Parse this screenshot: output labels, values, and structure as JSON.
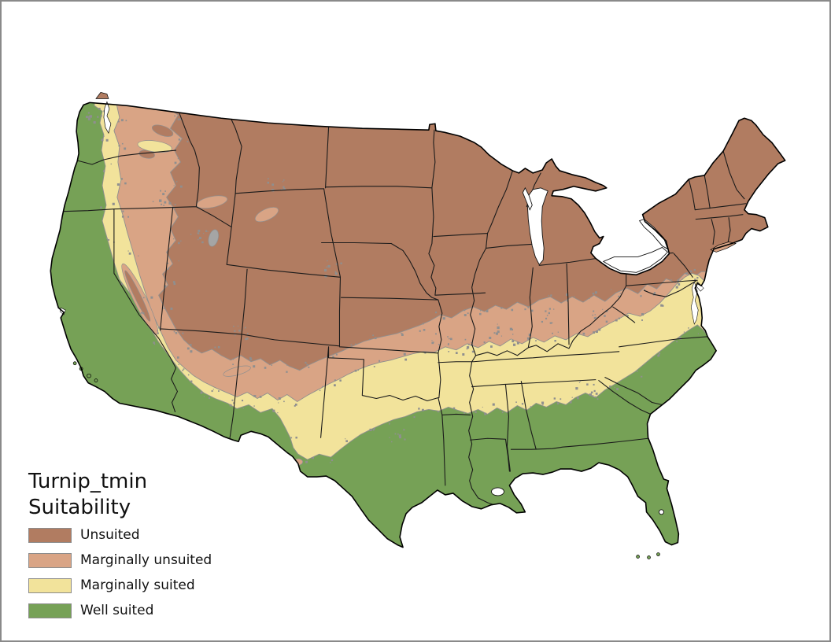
{
  "map": {
    "region_label": "conterminous-united-states-suitability-raster",
    "state_outline_color": "#1a1a1a",
    "coast_outline_color": "#000000",
    "water_color": "#ffffff",
    "nodata_color": "#8f8f8f",
    "raster_edge_color": "#8f8f8f"
  },
  "legend": {
    "title_line1": "Turnip_tmin",
    "title_line2": "Suitability",
    "swatch_border_color": "#8c8c8c",
    "items": [
      {
        "label": "Unsuited",
        "color": "#b17c61"
      },
      {
        "label": "Marginally unsuited",
        "color": "#d9a485"
      },
      {
        "label": "Marginally suited",
        "color": "#f2e39b"
      },
      {
        "label": "Well suited",
        "color": "#76a156"
      }
    ]
  },
  "canvas": {
    "background": "#ffffff",
    "border_color": "#8a8a8a"
  }
}
